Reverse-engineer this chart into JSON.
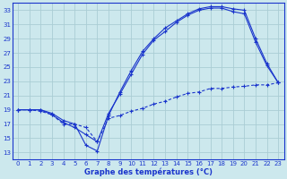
{
  "title": "Graphe des températures (°C)",
  "bg_color": "#cce8ed",
  "grid_color": "#aacdd4",
  "line_color": "#1a35cc",
  "xlim": [
    -0.5,
    23.5
  ],
  "ylim": [
    12,
    34
  ],
  "yticks": [
    13,
    15,
    17,
    19,
    21,
    23,
    25,
    27,
    29,
    31,
    33
  ],
  "xticks": [
    0,
    1,
    2,
    3,
    4,
    5,
    6,
    7,
    8,
    9,
    10,
    11,
    12,
    13,
    14,
    15,
    16,
    17,
    18,
    19,
    20,
    21,
    22,
    23
  ],
  "line1_x": [
    0,
    1,
    2,
    3,
    4,
    5,
    6,
    7,
    8,
    9,
    10,
    11,
    12,
    13,
    14,
    15,
    16,
    17,
    18,
    19,
    20,
    21,
    22,
    23
  ],
  "line1_y": [
    19,
    19,
    19,
    18.5,
    17.5,
    17.0,
    14.0,
    13.2,
    18.2,
    21.5,
    24.5,
    27.2,
    29.0,
    30.5,
    31.5,
    32.5,
    33.2,
    33.5,
    33.5,
    33.2,
    33.0,
    29.0,
    25.5,
    22.8
  ],
  "line2_x": [
    0,
    1,
    2,
    3,
    4,
    5,
    6,
    7,
    8,
    9,
    10,
    11,
    12,
    13,
    14,
    15,
    16,
    17,
    18,
    19,
    20,
    21,
    22,
    23
  ],
  "line2_y": [
    19,
    19,
    19,
    18.3,
    17.2,
    16.5,
    15.5,
    14.5,
    18.5,
    21.2,
    24.0,
    26.8,
    28.8,
    30.0,
    31.3,
    32.3,
    33.0,
    33.3,
    33.3,
    32.8,
    32.5,
    28.5,
    25.2,
    22.8
  ],
  "line3_x": [
    0,
    1,
    2,
    3,
    4,
    5,
    6,
    7,
    8,
    9,
    10,
    11,
    12,
    13,
    14,
    15,
    16,
    17,
    18,
    19,
    20,
    21,
    22,
    23
  ],
  "line3_y": [
    19.0,
    19.0,
    18.8,
    18.3,
    17.0,
    17.0,
    16.5,
    14.5,
    17.8,
    18.2,
    18.8,
    19.2,
    19.8,
    20.2,
    20.8,
    21.3,
    21.5,
    22.0,
    22.0,
    22.2,
    22.3,
    22.5,
    22.5,
    22.8
  ]
}
